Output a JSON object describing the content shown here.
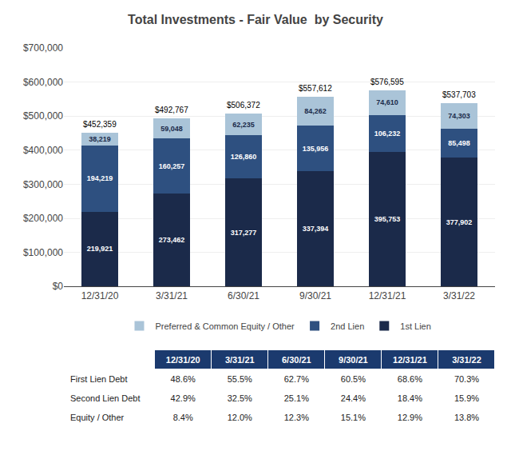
{
  "chart_data": {
    "type": "bar",
    "stacked": true,
    "title": "Total Investments - Fair Value  by Security",
    "categories": [
      "12/31/20",
      "3/31/21",
      "6/30/21",
      "9/30/21",
      "12/31/21",
      "3/31/22"
    ],
    "series": [
      {
        "name": "1st Lien",
        "color": "#1b2a4a",
        "values": [
          219921,
          273462,
          317277,
          337394,
          395753,
          377902
        ],
        "value_labels": [
          "219,921",
          "273,462",
          "317,277",
          "337,394",
          "395,753",
          "377,902"
        ]
      },
      {
        "name": "2nd Lien",
        "color": "#2e5080",
        "values": [
          194219,
          160257,
          126860,
          135956,
          106232,
          85498
        ],
        "value_labels": [
          "194,219",
          "160,257",
          "126,860",
          "135,956",
          "106,232",
          "85,498"
        ]
      },
      {
        "name": "Preferred & Common Equity / Other",
        "color": "#aac4d8",
        "values": [
          38219,
          59048,
          62235,
          84262,
          74610,
          74303
        ],
        "value_labels": [
          "38,219",
          "59,048",
          "62,235",
          "84,262",
          "74,610",
          "74,303"
        ]
      }
    ],
    "totals": {
      "values": [
        452359,
        492767,
        506372,
        557612,
        576595,
        537703
      ],
      "value_labels": [
        "$452,359",
        "$492,767",
        "$506,372",
        "$557,612",
        "$576,595",
        "$537,703"
      ]
    },
    "data_labels": true,
    "ylim": [
      0,
      700000
    ],
    "yticks": [
      {
        "value": 0,
        "label": "$0"
      },
      {
        "value": 100000,
        "label": "$100,000"
      },
      {
        "value": 200000,
        "label": "$200,000"
      },
      {
        "value": 300000,
        "label": "$300,000"
      },
      {
        "value": 400000,
        "label": "$400,000"
      },
      {
        "value": 500000,
        "label": "$500,000"
      },
      {
        "value": 600000,
        "label": "$600,000"
      },
      {
        "value": 700000,
        "label": "$700,000"
      }
    ],
    "grid": true,
    "legend": "bottom",
    "table": {
      "header": [
        "12/31/20",
        "3/31/21",
        "6/30/21",
        "9/30/21",
        "12/31/21",
        "3/31/22"
      ],
      "rows": [
        [
          "First Lien Debt",
          "48.6%",
          "55.5%",
          "62.7%",
          "60.5%",
          "68.6%",
          "70.3%"
        ],
        [
          "Second Lien Debt",
          "42.9%",
          "32.5%",
          "25.1%",
          "24.4%",
          "18.4%",
          "15.9%"
        ],
        [
          "Equity / Other",
          "8.4%",
          "12.0%",
          "12.3%",
          "15.1%",
          "12.9%",
          "13.8%"
        ]
      ],
      "header_color": "#1b3a6e",
      "header_text_color": "#ffffff"
    }
  }
}
